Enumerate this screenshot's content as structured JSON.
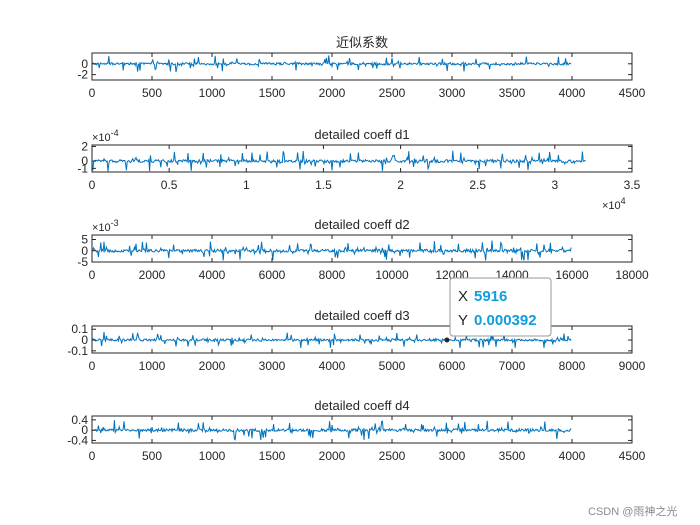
{
  "chart_data": [
    {
      "type": "line",
      "title": "近似系数",
      "xlim": [
        0,
        4500
      ],
      "x_ticks": [
        0,
        500,
        1000,
        1500,
        2000,
        2500,
        3000,
        3500,
        4000,
        4500
      ],
      "x_tick_labels": [
        "0",
        "500",
        "1000",
        "1500",
        "2000",
        "2500",
        "3000",
        "3500",
        "4000",
        "4500"
      ],
      "ylim": [
        -3,
        2
      ],
      "y_ticks": [
        0,
        -2
      ],
      "y_tick_labels": [
        "0",
        "-2"
      ],
      "data_extent": [
        0,
        4000
      ],
      "amplitude": 1.2,
      "x_exponent": "",
      "y_exponent": ""
    },
    {
      "type": "line",
      "title": "detailed coeff d1",
      "xlim": [
        0,
        35000
      ],
      "x_ticks": [
        0,
        5000,
        10000,
        15000,
        20000,
        25000,
        30000,
        35000
      ],
      "x_tick_labels": [
        "0",
        "0.5",
        "1",
        "1.5",
        "2",
        "2.5",
        "3",
        "3.5"
      ],
      "ylim": [
        -1.5,
        2.2
      ],
      "y_ticks": [
        2,
        0,
        -1
      ],
      "y_tick_labels": [
        "2",
        "0",
        "-1"
      ],
      "data_extent": [
        0,
        32000
      ],
      "amplitude": 1.1,
      "x_exponent": "10^4",
      "y_exponent": "10^-4"
    },
    {
      "type": "line",
      "title": "detailed coeff d2",
      "xlim": [
        0,
        18000
      ],
      "x_ticks": [
        0,
        2000,
        4000,
        6000,
        8000,
        10000,
        12000,
        14000,
        16000,
        18000
      ],
      "x_tick_labels": [
        "0",
        "2000",
        "4000",
        "6000",
        "8000",
        "10000",
        "12000",
        "14000",
        "16000",
        "18000"
      ],
      "ylim": [
        -5,
        7
      ],
      "y_ticks": [
        5,
        0,
        -5
      ],
      "y_tick_labels": [
        "5",
        "0",
        "-5"
      ],
      "data_extent": [
        0,
        16000
      ],
      "amplitude": 3.5,
      "x_exponent": "",
      "y_exponent": "10^-3"
    },
    {
      "type": "line",
      "title": "detailed coeff d3",
      "xlim": [
        0,
        9000
      ],
      "x_ticks": [
        0,
        1000,
        2000,
        3000,
        4000,
        5000,
        6000,
        7000,
        8000,
        9000
      ],
      "x_tick_labels": [
        "0",
        "1000",
        "2000",
        "3000",
        "4000",
        "5000",
        "6000",
        "7000",
        "8000",
        "9000"
      ],
      "ylim": [
        -0.12,
        0.13
      ],
      "y_ticks": [
        0.1,
        0,
        -0.1
      ],
      "y_tick_labels": [
        "0.1",
        "0",
        "-0.1"
      ],
      "data_extent": [
        0,
        8000
      ],
      "amplitude": 0.06,
      "x_exponent": "",
      "y_exponent": "",
      "datatip": {
        "x_label": "X",
        "x_value": "5916",
        "y_label": "Y",
        "y_value": "0.000392",
        "x": 5916,
        "y": 0.000392
      }
    },
    {
      "type": "line",
      "title": "detailed coeff d4",
      "xlim": [
        0,
        4500
      ],
      "x_ticks": [
        0,
        500,
        1000,
        1500,
        2000,
        2500,
        3000,
        3500,
        4000,
        4500
      ],
      "x_tick_labels": [
        "0",
        "500",
        "1000",
        "1500",
        "2000",
        "2500",
        "3000",
        "3500",
        "4000",
        "4500"
      ],
      "ylim": [
        -0.5,
        0.55
      ],
      "y_ticks": [
        0.4,
        0,
        -0.4
      ],
      "y_tick_labels": [
        "0.4",
        "0",
        "-0.4"
      ],
      "data_extent": [
        0,
        4000
      ],
      "amplitude": 0.3,
      "x_exponent": "",
      "y_exponent": ""
    }
  ],
  "watermark": "CSDN @雨神之光",
  "colors": {
    "series": "#0072bd",
    "axis": "#262626",
    "datatip_value": "#0f9ee0"
  }
}
